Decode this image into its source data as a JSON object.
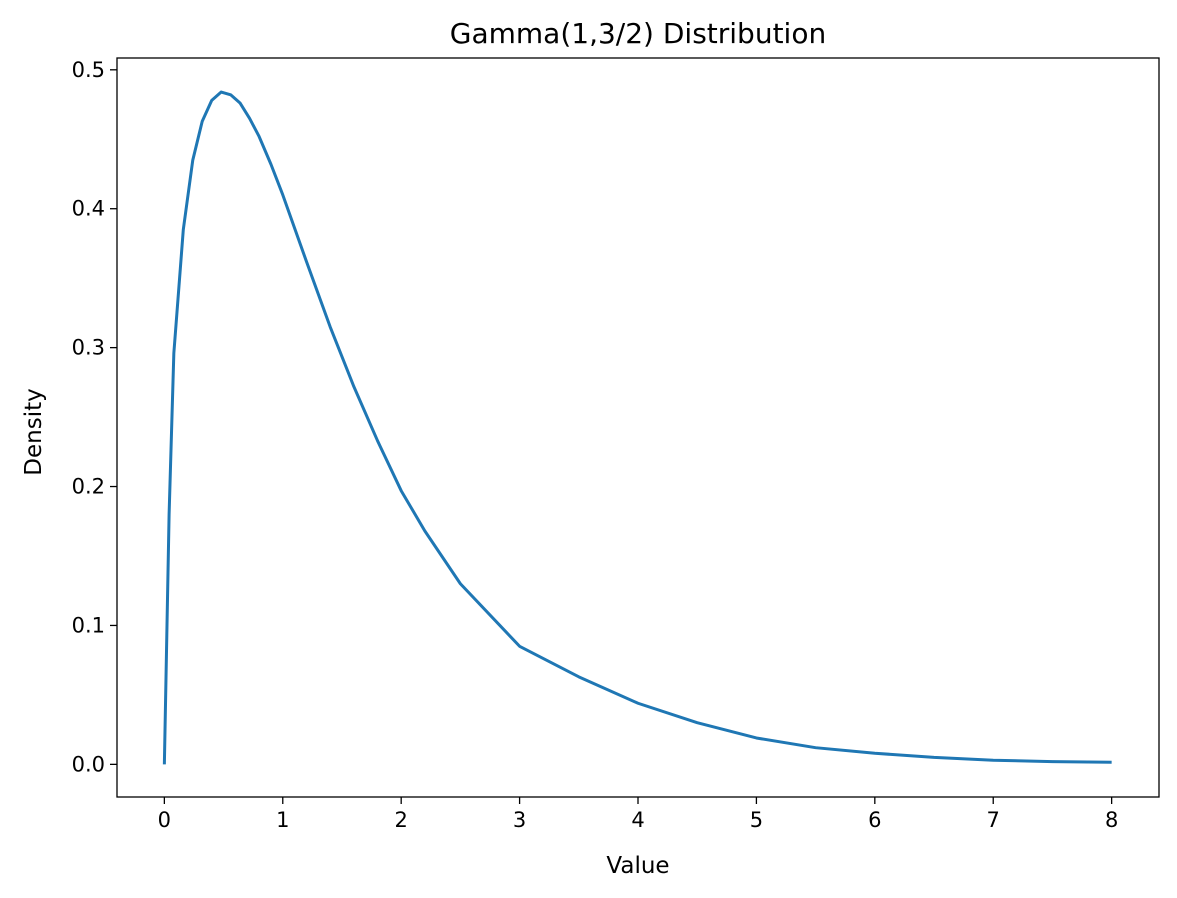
{
  "chart_data": {
    "type": "line",
    "title": "Gamma(1,3/2) Distribution",
    "xlabel": "Value",
    "ylabel": "Density",
    "xlim": [
      -0.4,
      8.4
    ],
    "ylim": [
      -0.0235,
      0.5085
    ],
    "xticks": [
      0,
      1,
      2,
      3,
      4,
      5,
      6,
      7,
      8
    ],
    "xtick_labels": [
      "0",
      "1",
      "2",
      "3",
      "4",
      "5",
      "6",
      "7",
      "8"
    ],
    "yticks": [
      0.0,
      0.1,
      0.2,
      0.3,
      0.4,
      0.5
    ],
    "ytick_labels": [
      "0.0",
      "0.1",
      "0.2",
      "0.3",
      "0.4",
      "0.5"
    ],
    "grid": false,
    "legend": false,
    "series": [
      {
        "color": "#1f77b4",
        "x": [
          0,
          0.04,
          0.08,
          0.16,
          0.24,
          0.32,
          0.4,
          0.48,
          0.56,
          0.64,
          0.72,
          0.8,
          0.9,
          1.0,
          1.2,
          1.4,
          1.6,
          1.8,
          2.0,
          2.2,
          2.5,
          3.0,
          3.5,
          4.0,
          4.5,
          5.0,
          5.5,
          6.0,
          6.5,
          7.0,
          7.5,
          8.0
        ],
        "y": [
          0.0,
          0.18,
          0.296,
          0.385,
          0.435,
          0.463,
          0.478,
          0.484,
          0.482,
          0.476,
          0.465,
          0.452,
          0.432,
          0.41,
          0.362,
          0.315,
          0.272,
          0.233,
          0.197,
          0.168,
          0.13,
          0.085,
          0.063,
          0.044,
          0.03,
          0.019,
          0.012,
          0.008,
          0.005,
          0.003,
          0.002,
          0.0015
        ]
      }
    ]
  }
}
